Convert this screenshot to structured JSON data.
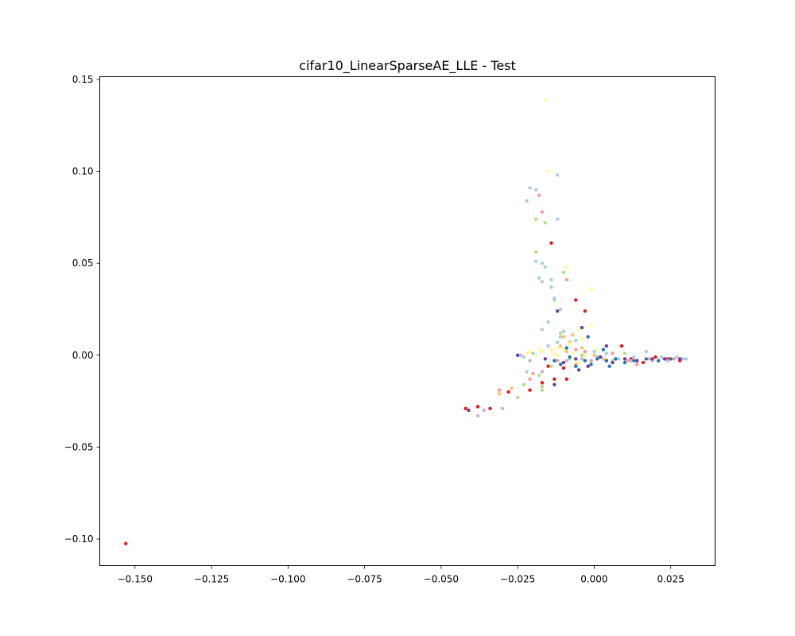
{
  "chart_data": {
    "type": "scatter",
    "title": "cifar10_LinearSparseAE_LLE - Test",
    "xlabel": "",
    "ylabel": "",
    "xlim": [
      -0.1615,
      0.0395
    ],
    "ylim": [
      -0.1145,
      0.1515
    ],
    "xticks": [
      -0.15,
      -0.125,
      -0.1,
      -0.075,
      -0.05,
      -0.025,
      0.0,
      0.025
    ],
    "xtick_labels": [
      "−0.150",
      "−0.125",
      "−0.100",
      "−0.075",
      "−0.050",
      "−0.025",
      "0.000",
      "0.025"
    ],
    "yticks": [
      -0.1,
      -0.05,
      0.0,
      0.05,
      0.1,
      0.15
    ],
    "ytick_labels": [
      "−0.10",
      "−0.05",
      "0.00",
      "0.05",
      "0.10",
      "0.15"
    ],
    "grid": false,
    "colors": [
      "#e41a1c",
      "#fb9a99",
      "#fdbf6f",
      "#ffff99",
      "#fff3a0",
      "#b2df8a",
      "#a6cee3",
      "#cab2d6",
      "#6a3d9a",
      "#1f78b4"
    ],
    "series": [
      {
        "color_index": 0,
        "points": [
          [
            -0.153,
            -0.1025
          ],
          [
            -0.014,
            0.061
          ],
          [
            -0.006,
            0.03
          ],
          [
            -0.003,
            0.024
          ],
          [
            -0.042,
            -0.029
          ],
          [
            -0.038,
            -0.028
          ],
          [
            -0.034,
            -0.029
          ],
          [
            -0.028,
            -0.02
          ],
          [
            -0.021,
            -0.019
          ],
          [
            -0.017,
            -0.015
          ],
          [
            -0.013,
            -0.013
          ],
          [
            -0.01,
            -0.007
          ],
          [
            -0.005,
            -0.004
          ],
          [
            -0.002,
            -0.006
          ],
          [
            0.004,
            -0.003
          ],
          [
            0.009,
            0.005
          ],
          [
            0.012,
            -0.002
          ],
          [
            0.016,
            -0.004
          ],
          [
            0.02,
            -0.001
          ],
          [
            0.024,
            -0.002
          ],
          [
            0.028,
            -0.003
          ],
          [
            -0.009,
            -0.013
          ],
          [
            -0.015,
            -0.006
          ]
        ]
      },
      {
        "color_index": 1,
        "points": [
          [
            -0.018,
            0.087
          ],
          [
            -0.017,
            0.078
          ],
          [
            -0.009,
            0.041
          ],
          [
            -0.021,
            -0.013
          ],
          [
            -0.02,
            -0.01
          ],
          [
            -0.012,
            -0.003
          ],
          [
            -0.006,
            0.003
          ],
          [
            -0.001,
            -0.003
          ],
          [
            0.006,
            0.001
          ],
          [
            0.011,
            -0.003
          ],
          [
            0.018,
            -0.002
          ],
          [
            0.026,
            -0.002
          ],
          [
            -0.031,
            -0.019
          ],
          [
            -0.003,
            0.002
          ],
          [
            0.014,
            -0.005
          ]
        ]
      },
      {
        "color_index": 2,
        "points": [
          [
            -0.031,
            -0.021
          ],
          [
            -0.027,
            -0.018
          ],
          [
            -0.01,
            0.01
          ],
          [
            -0.008,
            0.007
          ],
          [
            -0.004,
            0.004
          ],
          [
            -0.009,
            0.002
          ],
          [
            -0.011,
            0.005
          ],
          [
            -0.006,
            -0.005
          ],
          [
            0.0,
            0.0
          ],
          [
            0.003,
            -0.002
          ],
          [
            -0.007,
            0.011
          ]
        ]
      },
      {
        "color_index": 3,
        "points": [
          [
            -0.016,
            0.139
          ],
          [
            -0.015,
            0.1
          ],
          [
            -0.009,
            0.048
          ],
          [
            -0.001,
            0.036
          ],
          [
            -0.001,
            0.016
          ],
          [
            -0.005,
            0.014
          ],
          [
            -0.021,
            0.002
          ],
          [
            -0.018,
            0.003
          ],
          [
            -0.015,
            0.005
          ],
          [
            -0.012,
            0.004
          ],
          [
            -0.008,
            0.006
          ],
          [
            -0.005,
            -0.004
          ],
          [
            0.001,
            0.003
          ],
          [
            -0.004,
            0.009
          ]
        ]
      },
      {
        "color_index": 4,
        "points": [
          [
            -0.022,
            0.001
          ],
          [
            -0.019,
            0.0
          ],
          [
            -0.017,
            0.002
          ],
          [
            -0.013,
            0.001
          ],
          [
            -0.01,
            0.003
          ],
          [
            -0.007,
            0.001
          ],
          [
            -0.003,
            0.0
          ],
          [
            -0.012,
            0.0
          ],
          [
            -0.014,
            0.003
          ]
        ]
      },
      {
        "color_index": 5,
        "points": [
          [
            -0.019,
            0.074
          ],
          [
            -0.016,
            0.072
          ],
          [
            -0.019,
            0.056
          ],
          [
            -0.01,
            0.045
          ],
          [
            -0.013,
            0.03
          ],
          [
            -0.017,
            -0.019
          ],
          [
            -0.017,
            -0.017
          ],
          [
            -0.025,
            -0.023
          ],
          [
            -0.023,
            -0.016
          ],
          [
            -0.018,
            -0.011
          ],
          [
            -0.014,
            -0.006
          ],
          [
            -0.008,
            -0.002
          ],
          [
            -0.004,
            0.0
          ],
          [
            0.002,
            -0.001
          ],
          [
            0.006,
            -0.003
          ],
          [
            0.01,
            0.001
          ],
          [
            -0.011,
            0.012
          ]
        ]
      },
      {
        "color_index": 6,
        "points": [
          [
            -0.012,
            0.098
          ],
          [
            -0.021,
            0.091
          ],
          [
            -0.019,
            0.09
          ],
          [
            -0.022,
            0.084
          ],
          [
            -0.012,
            0.074
          ],
          [
            -0.016,
            0.048
          ],
          [
            -0.019,
            0.051
          ],
          [
            -0.017,
            0.05
          ],
          [
            -0.018,
            0.042
          ],
          [
            -0.017,
            0.04
          ],
          [
            -0.014,
            0.041
          ],
          [
            -0.014,
            0.037
          ],
          [
            -0.013,
            0.031
          ],
          [
            -0.011,
            0.025
          ],
          [
            -0.015,
            0.018
          ],
          [
            -0.017,
            0.014
          ],
          [
            -0.01,
            0.013
          ],
          [
            -0.011,
            0.01
          ],
          [
            -0.012,
            0.007
          ],
          [
            -0.015,
            0.005
          ],
          [
            -0.02,
            0.001
          ],
          [
            -0.023,
            -0.001
          ],
          [
            -0.006,
            0.008
          ],
          [
            0.0,
            0.002
          ],
          [
            0.004,
            0.001
          ],
          [
            0.008,
            -0.002
          ],
          [
            0.013,
            -0.001
          ],
          [
            0.017,
            0.002
          ],
          [
            0.022,
            -0.001
          ],
          [
            -0.022,
            -0.009
          ],
          [
            0.027,
            -0.001
          ],
          [
            0.03,
            -0.002
          ]
        ]
      },
      {
        "color_index": 7,
        "points": [
          [
            -0.038,
            -0.033
          ],
          [
            -0.036,
            -0.03
          ],
          [
            -0.03,
            -0.029
          ],
          [
            -0.024,
            0.0
          ],
          [
            -0.021,
            -0.003
          ],
          [
            -0.017,
            -0.009
          ],
          [
            -0.009,
            -0.003
          ],
          [
            -0.004,
            -0.002
          ],
          [
            0.001,
            -0.001
          ],
          [
            0.007,
            -0.002
          ],
          [
            0.012,
            -0.003
          ],
          [
            0.019,
            -0.003
          ],
          [
            0.024,
            -0.003
          ],
          [
            0.029,
            -0.002
          ]
        ]
      },
      {
        "color_index": 8,
        "points": [
          [
            -0.041,
            -0.03
          ],
          [
            -0.025,
            0.0
          ],
          [
            -0.012,
            0.024
          ],
          [
            -0.004,
            0.015
          ],
          [
            -0.016,
            -0.002
          ],
          [
            -0.013,
            -0.016
          ],
          [
            -0.01,
            -0.004
          ],
          [
            -0.006,
            -0.002
          ],
          [
            -0.002,
            -0.006
          ],
          [
            0.002,
            -0.001
          ],
          [
            0.006,
            -0.004
          ],
          [
            0.01,
            -0.002
          ],
          [
            0.014,
            -0.003
          ],
          [
            0.019,
            -0.002
          ],
          [
            0.023,
            -0.002
          ],
          [
            0.028,
            -0.002
          ],
          [
            -0.005,
            -0.008
          ],
          [
            0.004,
            0.005
          ]
        ]
      },
      {
        "color_index": 9,
        "points": [
          [
            -0.013,
            -0.003
          ],
          [
            -0.011,
            -0.005
          ],
          [
            -0.008,
            -0.001
          ],
          [
            -0.006,
            -0.006
          ],
          [
            -0.003,
            -0.003
          ],
          [
            -0.001,
            -0.005
          ],
          [
            0.001,
            -0.002
          ],
          [
            0.004,
            -0.003
          ],
          [
            0.007,
            -0.002
          ],
          [
            0.01,
            -0.004
          ],
          [
            0.013,
            -0.003
          ],
          [
            0.017,
            -0.002
          ],
          [
            0.021,
            -0.003
          ],
          [
            0.025,
            -0.002
          ],
          [
            -0.002,
            0.01
          ],
          [
            0.003,
            0.003
          ],
          [
            -0.009,
            0.004
          ],
          [
            0.005,
            -0.006
          ]
        ]
      }
    ]
  }
}
